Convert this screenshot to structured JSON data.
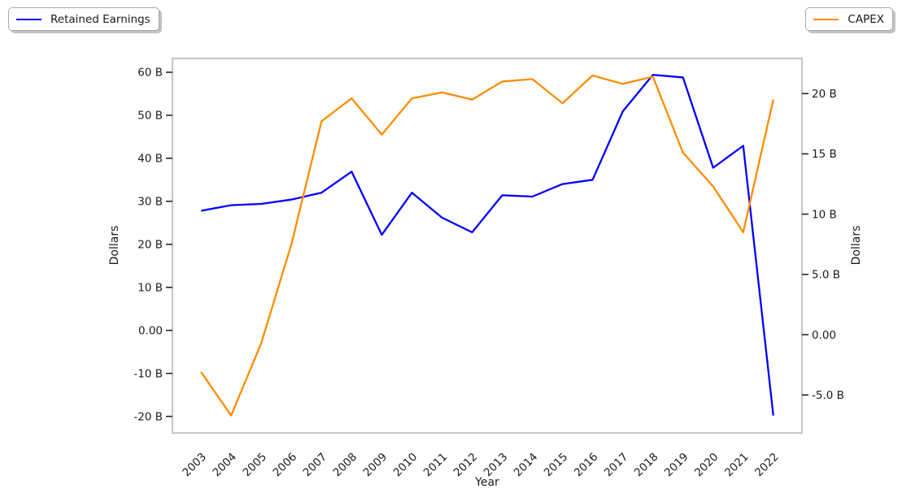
{
  "legend": {
    "left": "Retained Earnings",
    "right": "CAPEX"
  },
  "colors": {
    "blue": "#0000ff",
    "orange": "#ff8c00",
    "frame": "#c8c8c8",
    "text": "#1c1c1c"
  },
  "chart_data": {
    "type": "line",
    "title": "",
    "xlabel": "Year",
    "ylabel_left": "Dollars",
    "ylabel_right": "Dollars",
    "grid": false,
    "units": "billions of dollars",
    "x": [
      2003,
      2004,
      2005,
      2006,
      2007,
      2008,
      2009,
      2010,
      2011,
      2012,
      2013,
      2014,
      2015,
      2016,
      2017,
      2018,
      2019,
      2020,
      2021,
      2022
    ],
    "x_tick_labels": [
      "2003",
      "2004",
      "2005",
      "2006",
      "2007",
      "2008",
      "2009",
      "2010",
      "2011",
      "2012",
      "2013",
      "2014",
      "2015",
      "2016",
      "2017",
      "2018",
      "2019",
      "2020",
      "2021",
      "2022"
    ],
    "x_range": [
      2002.05,
      2022.95
    ],
    "series": [
      {
        "name": "Retained Earnings",
        "axis": "left",
        "color": "#0000ff",
        "legend_position": "upper left",
        "values": [
          27.8,
          29.1,
          29.4,
          30.4,
          32.0,
          36.9,
          22.2,
          32.0,
          26.2,
          22.8,
          31.4,
          31.1,
          34.0,
          35.0,
          50.9,
          59.4,
          58.8,
          37.8,
          42.9,
          -19.8
        ]
      },
      {
        "name": "CAPEX",
        "axis": "right",
        "color": "#ff8c00",
        "legend_position": "upper right",
        "values": [
          -3.1,
          -6.7,
          -0.7,
          7.5,
          17.7,
          19.6,
          16.6,
          19.6,
          20.1,
          19.5,
          21.0,
          21.2,
          19.2,
          21.5,
          20.8,
          21.4,
          15.1,
          12.3,
          8.5,
          19.5
        ]
      }
    ],
    "left_axis": {
      "tick_values": [
        60,
        50,
        40,
        30,
        20,
        10,
        0,
        -10,
        -20
      ],
      "tick_labels": [
        "60 B",
        "50 B",
        "40 B",
        "30 B",
        "20 B",
        "10 B",
        "0.00",
        "-10 B",
        "-20 B"
      ],
      "range": [
        -23.85,
        63.2
      ]
    },
    "right_axis": {
      "tick_values": [
        20,
        15,
        10,
        5,
        0,
        -5
      ],
      "tick_labels": [
        "20 B",
        "15 B",
        "10 B",
        "5.0 B",
        "0.00",
        "-5.0 B"
      ],
      "range": [
        -8.15,
        22.91
      ]
    }
  }
}
